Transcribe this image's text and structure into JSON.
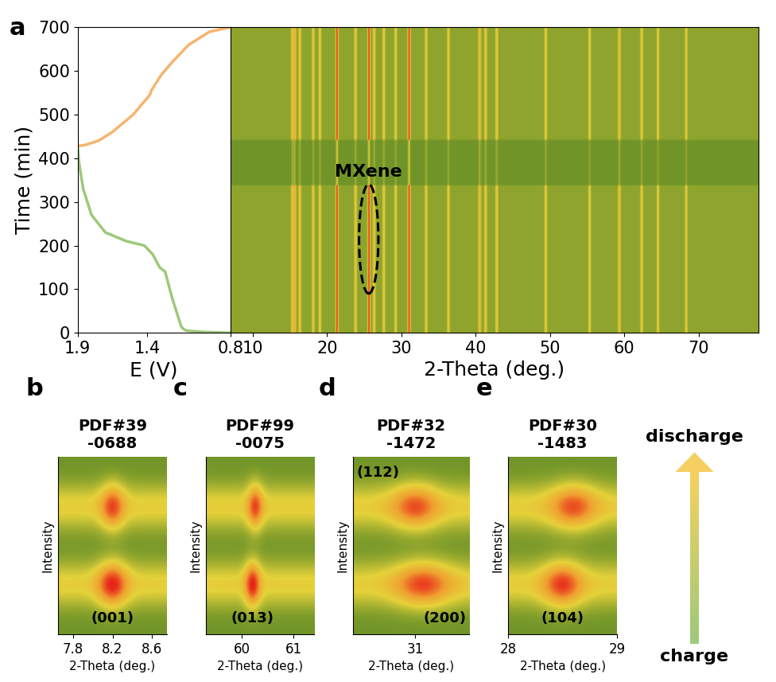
{
  "chart_data": [
    {
      "type": "line",
      "panel_label": "a",
      "xlabel": "E (V)",
      "ylabel": "Time (min)",
      "xlim": [
        1.9,
        0.8
      ],
      "xticks": [
        1.9,
        1.4,
        0.8
      ],
      "ylim": [
        0,
        700
      ],
      "yticks": [
        0,
        100,
        200,
        300,
        400,
        500,
        600,
        700
      ],
      "series": [
        {
          "color": "#9dc97a",
          "x": [
            0.8,
            1.0,
            1.12,
            1.15,
            1.16,
            1.22,
            1.27,
            1.31,
            1.36,
            1.42,
            1.55,
            1.7,
            1.8,
            1.86,
            1.89,
            1.9
          ],
          "y": [
            0,
            2,
            5,
            12,
            20,
            80,
            140,
            150,
            180,
            200,
            210,
            230,
            270,
            330,
            390,
            430
          ]
        },
        {
          "color": "#f7b46e",
          "x": [
            1.9,
            1.85,
            1.75,
            1.65,
            1.5,
            1.42,
            1.38,
            1.37,
            1.33,
            1.3,
            1.22,
            1.1,
            0.95,
            0.8
          ],
          "y": [
            428,
            430,
            440,
            460,
            500,
            530,
            545,
            555,
            575,
            590,
            620,
            660,
            690,
            700
          ]
        }
      ]
    },
    {
      "type": "heatmap",
      "xlabel": "2-Theta (deg.)",
      "xlim": [
        7,
        78
      ],
      "xticks": [
        10,
        20,
        30,
        40,
        50,
        60,
        70
      ],
      "ylim": [
        0,
        700
      ],
      "tick_labels": "x",
      "peaks": {
        "two_theta": [
          15.3,
          15.6,
          16.3,
          18.1,
          19.0,
          21.3,
          23.8,
          25.6,
          26.3,
          27.6,
          29.2,
          31.0,
          33.3,
          36.3,
          40.5,
          41.3,
          42.8,
          49.4,
          55.3,
          59.3,
          62.3,
          64.5,
          68.3
        ],
        "intensity": [
          0.5,
          0.6,
          0.5,
          0.4,
          0.4,
          1.0,
          0.45,
          1.0,
          0.5,
          0.45,
          0.4,
          1.0,
          0.45,
          0.4,
          0.55,
          0.5,
          0.45,
          0.4,
          0.35,
          0.5,
          0.4,
          0.35,
          0.35
        ]
      },
      "faint_band": [
        340,
        440
      ],
      "annotation": {
        "text": "MXene",
        "two_theta": 25.6,
        "time": [
          90,
          340
        ]
      }
    },
    {
      "type": "heatmap",
      "panel_label": "b",
      "title": "PDF#39\n-0688",
      "xlabel": "2-Theta (deg.)",
      "ylabel": "Intensity",
      "xlim": [
        7.65,
        8.75
      ],
      "xticks": [
        7.8,
        8.2,
        8.6
      ],
      "tick_labels": "x",
      "peaks": [
        {
          "stage": "charge",
          "center": 8.2,
          "fwhm": 0.25,
          "intensity": 1.0,
          "label": "(001)"
        },
        {
          "stage": "discharge",
          "center": 8.2,
          "fwhm": 0.2,
          "intensity": 0.85
        }
      ]
    },
    {
      "type": "heatmap",
      "panel_label": "c",
      "title": "PDF#99\n-0075",
      "xlabel": "2-Theta (deg.)",
      "ylabel": "Intensity",
      "xlim": [
        59.3,
        61.4
      ],
      "xticks": [
        60,
        61
      ],
      "tick_labels": "x",
      "peaks": [
        {
          "stage": "charge",
          "center": 60.2,
          "fwhm": 0.25,
          "intensity": 1.0,
          "label": "(013)"
        },
        {
          "stage": "discharge",
          "center": 60.25,
          "fwhm": 0.25,
          "intensity": 0.85
        }
      ]
    },
    {
      "type": "heatmap",
      "panel_label": "d",
      "title": "PDF#32\n-1472",
      "xlabel": "2-Theta (deg.)",
      "ylabel": "Intensity",
      "xlim": [
        30.2,
        31.7
      ],
      "xticks": [
        31
      ],
      "tick_labels": "x",
      "peaks": [
        {
          "stage": "charge",
          "center": 31.1,
          "fwhm": 0.6,
          "intensity": 0.85,
          "label": "(200)"
        },
        {
          "stage": "discharge",
          "center": 31.0,
          "fwhm": 0.5,
          "intensity": 0.8,
          "label": "(112)"
        }
      ]
    },
    {
      "type": "heatmap",
      "panel_label": "e",
      "title": "PDF#30\n-1483",
      "xlabel": "2-Theta (deg.)",
      "ylabel": "Intensity",
      "xlim": [
        28,
        29
      ],
      "xticks": [
        28,
        29
      ],
      "tick_labels": "x",
      "peaks": [
        {
          "stage": "charge",
          "center": 28.5,
          "fwhm": 0.3,
          "intensity": 0.9,
          "label": "(104)"
        },
        {
          "stage": "discharge",
          "center": 28.6,
          "fwhm": 0.35,
          "intensity": 0.8
        }
      ]
    }
  ],
  "arrow_legend": {
    "top": "discharge",
    "bottom": "charge"
  }
}
